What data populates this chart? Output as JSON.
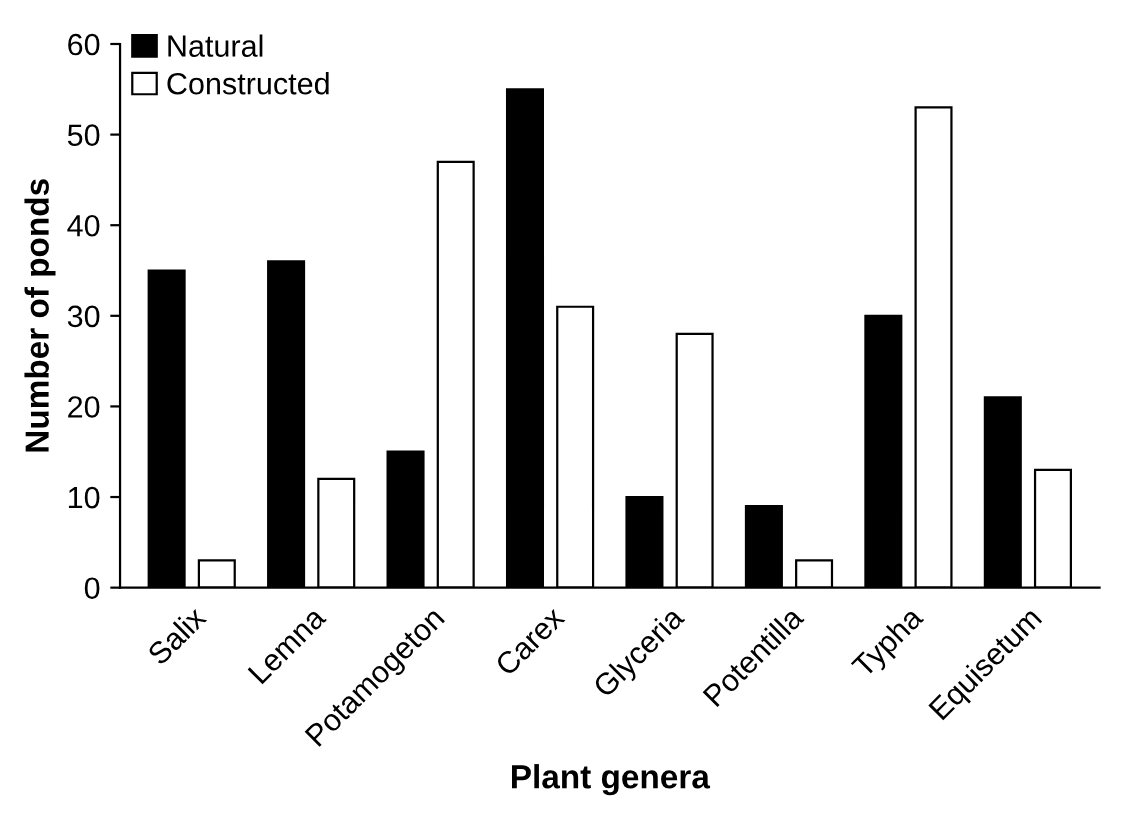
{
  "chart_data": {
    "type": "bar",
    "xlabel": "Plant genera",
    "ylabel": "Number of ponds",
    "categories": [
      "Salix",
      "Lemna",
      "Potamogeton",
      "Carex",
      "Glyceria",
      "Potentilla",
      "Typha",
      "Equisetum"
    ],
    "series": [
      {
        "name": "Natural",
        "color": "#000000",
        "values": [
          35,
          36,
          15,
          55,
          10,
          9,
          30,
          21
        ]
      },
      {
        "name": "Constructed",
        "color": "#ffffff",
        "values": [
          3,
          12,
          47,
          31,
          28,
          3,
          53,
          13
        ]
      }
    ],
    "ylim": [
      0,
      60
    ],
    "yticks": [
      0,
      10,
      20,
      30,
      40,
      50,
      60
    ],
    "grid": false,
    "legend": "top left"
  }
}
